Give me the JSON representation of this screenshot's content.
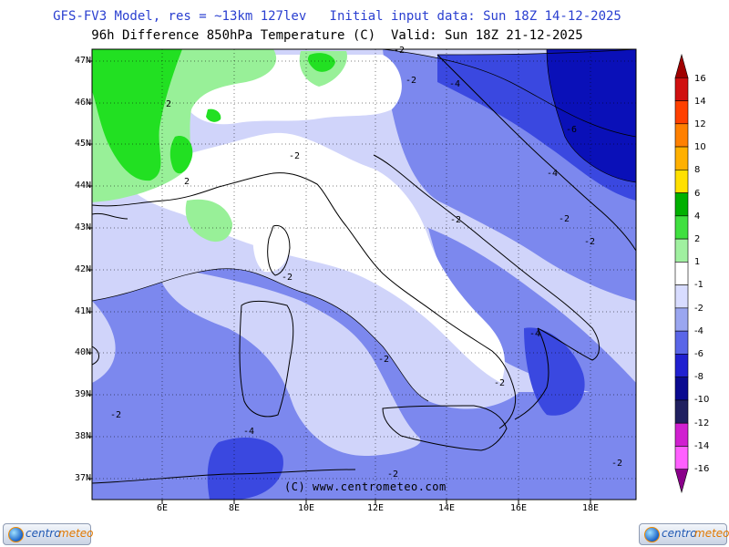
{
  "header": {
    "title1": "GFS-FV3 Model, res = ~13km 127lev   Initial input data: Sun 18Z 14-12-2025",
    "title2": "96h Difference 850hPa Temperature (C)  Valid: Sun 18Z 21-12-2025"
  },
  "axes": {
    "lat_labels": [
      "47N",
      "46N",
      "45N",
      "44N",
      "43N",
      "42N",
      "41N",
      "40N",
      "39N",
      "38N",
      "37N"
    ],
    "lon_labels": [
      "6E",
      "8E",
      "10E",
      "12E",
      "14E",
      "16E",
      "18E"
    ]
  },
  "colorbar": {
    "labels": [
      "16",
      "14",
      "12",
      "10",
      "8",
      "6",
      "4",
      "2",
      "1",
      "-1",
      "-2",
      "-4",
      "-6",
      "-8",
      "-10",
      "-12",
      "-14",
      "-16"
    ],
    "colors": [
      "#a00000",
      "#d01010",
      "#ff4000",
      "#ff8000",
      "#ffb000",
      "#ffe000",
      "#00b000",
      "#40e040",
      "#a0f0a0",
      "#ffffff",
      "#d8dcff",
      "#9aa6f0",
      "#5a66e8",
      "#2020d0",
      "#0a0a90",
      "#202060",
      "#d020d0",
      "#ff60ff",
      "#8a008a"
    ]
  },
  "contour_labels": [
    "-2",
    "-2",
    "-4",
    "-2",
    "2",
    "2",
    "-6",
    "-2",
    "-4",
    "-2",
    "-2",
    "-2",
    "-2",
    "-4",
    "-2",
    "-2",
    "-2",
    "-4",
    "-2",
    "-2"
  ],
  "credit": "(C) www.centrometeo.com",
  "logo": {
    "word1": "centro",
    "word2": "meteo"
  },
  "legend_colors": {
    "green_high": "#22e022",
    "green_light": "#98f098",
    "white": "#ffffff",
    "pale_blue": "#d0d4fa",
    "mid_blue": "#7c88ee",
    "deep_blue": "#3a48e0",
    "dark_blue": "#0a10b8"
  }
}
